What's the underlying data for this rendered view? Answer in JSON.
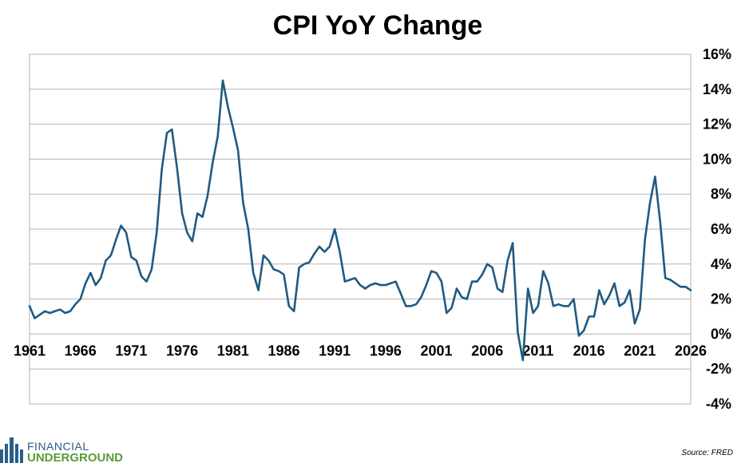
{
  "chart_data": {
    "type": "line",
    "title": "CPI YoY Change",
    "xlabel": "",
    "ylabel": "",
    "x_ticks": [
      "1961",
      "1966",
      "1971",
      "1976",
      "1981",
      "1986",
      "1991",
      "1996",
      "2001",
      "2006",
      "2011",
      "2016",
      "2021",
      "2026"
    ],
    "y_ticks": [
      "16%",
      "14%",
      "12%",
      "10%",
      "8%",
      "6%",
      "4%",
      "2%",
      "0%",
      "-2%",
      "-4%"
    ],
    "xlim": [
      1961,
      2026
    ],
    "ylim": [
      -4,
      16
    ],
    "grid": true,
    "legend": "none",
    "line_color": "#1f5a82",
    "series": [
      {
        "values": [
          [
            1961.0,
            1.6
          ],
          [
            1961.5,
            0.9
          ],
          [
            1962.0,
            1.1
          ],
          [
            1962.5,
            1.3
          ],
          [
            1963.0,
            1.2
          ],
          [
            1963.5,
            1.3
          ],
          [
            1964.0,
            1.4
          ],
          [
            1964.5,
            1.2
          ],
          [
            1965.0,
            1.3
          ],
          [
            1965.5,
            1.7
          ],
          [
            1966.0,
            2.0
          ],
          [
            1966.5,
            2.9
          ],
          [
            1967.0,
            3.5
          ],
          [
            1967.5,
            2.8
          ],
          [
            1968.0,
            3.2
          ],
          [
            1968.5,
            4.2
          ],
          [
            1969.0,
            4.5
          ],
          [
            1969.5,
            5.4
          ],
          [
            1970.0,
            6.2
          ],
          [
            1970.5,
            5.8
          ],
          [
            1971.0,
            4.4
          ],
          [
            1971.5,
            4.2
          ],
          [
            1972.0,
            3.3
          ],
          [
            1972.5,
            3.0
          ],
          [
            1973.0,
            3.7
          ],
          [
            1973.5,
            5.8
          ],
          [
            1974.0,
            9.4
          ],
          [
            1974.5,
            11.5
          ],
          [
            1975.0,
            11.7
          ],
          [
            1975.5,
            9.5
          ],
          [
            1976.0,
            6.9
          ],
          [
            1976.5,
            5.8
          ],
          [
            1977.0,
            5.3
          ],
          [
            1977.5,
            6.9
          ],
          [
            1978.0,
            6.7
          ],
          [
            1978.5,
            7.9
          ],
          [
            1979.0,
            9.8
          ],
          [
            1979.5,
            11.3
          ],
          [
            1980.0,
            14.5
          ],
          [
            1980.5,
            13.0
          ],
          [
            1981.0,
            11.8
          ],
          [
            1981.5,
            10.5
          ],
          [
            1982.0,
            7.5
          ],
          [
            1982.5,
            6.0
          ],
          [
            1983.0,
            3.5
          ],
          [
            1983.5,
            2.5
          ],
          [
            1984.0,
            4.5
          ],
          [
            1984.5,
            4.2
          ],
          [
            1985.0,
            3.7
          ],
          [
            1985.5,
            3.6
          ],
          [
            1986.0,
            3.4
          ],
          [
            1986.5,
            1.6
          ],
          [
            1987.0,
            1.3
          ],
          [
            1987.5,
            3.8
          ],
          [
            1988.0,
            4.0
          ],
          [
            1988.5,
            4.1
          ],
          [
            1989.0,
            4.6
          ],
          [
            1989.5,
            5.0
          ],
          [
            1990.0,
            4.7
          ],
          [
            1990.5,
            5.0
          ],
          [
            1991.0,
            6.0
          ],
          [
            1991.5,
            4.7
          ],
          [
            1992.0,
            3.0
          ],
          [
            1992.5,
            3.1
          ],
          [
            1993.0,
            3.2
          ],
          [
            1993.5,
            2.8
          ],
          [
            1994.0,
            2.6
          ],
          [
            1994.5,
            2.8
          ],
          [
            1995.0,
            2.9
          ],
          [
            1995.5,
            2.8
          ],
          [
            1996.0,
            2.8
          ],
          [
            1996.5,
            2.9
          ],
          [
            1997.0,
            3.0
          ],
          [
            1997.5,
            2.3
          ],
          [
            1998.0,
            1.6
          ],
          [
            1998.5,
            1.6
          ],
          [
            1999.0,
            1.7
          ],
          [
            1999.5,
            2.1
          ],
          [
            2000.0,
            2.8
          ],
          [
            2000.5,
            3.6
          ],
          [
            2001.0,
            3.5
          ],
          [
            2001.5,
            3.0
          ],
          [
            2002.0,
            1.2
          ],
          [
            2002.5,
            1.5
          ],
          [
            2003.0,
            2.6
          ],
          [
            2003.5,
            2.1
          ],
          [
            2004.0,
            2.0
          ],
          [
            2004.5,
            3.0
          ],
          [
            2005.0,
            3.0
          ],
          [
            2005.5,
            3.4
          ],
          [
            2006.0,
            4.0
          ],
          [
            2006.5,
            3.8
          ],
          [
            2007.0,
            2.6
          ],
          [
            2007.5,
            2.4
          ],
          [
            2008.0,
            4.2
          ],
          [
            2008.5,
            5.2
          ],
          [
            2009.0,
            0.1
          ],
          [
            2009.5,
            -1.5
          ],
          [
            2010.0,
            2.6
          ],
          [
            2010.5,
            1.2
          ],
          [
            2011.0,
            1.6
          ],
          [
            2011.5,
            3.6
          ],
          [
            2012.0,
            2.9
          ],
          [
            2012.5,
            1.6
          ],
          [
            2013.0,
            1.7
          ],
          [
            2013.5,
            1.6
          ],
          [
            2014.0,
            1.6
          ],
          [
            2014.5,
            2.0
          ],
          [
            2015.0,
            -0.1
          ],
          [
            2015.5,
            0.2
          ],
          [
            2016.0,
            1.0
          ],
          [
            2016.5,
            1.0
          ],
          [
            2017.0,
            2.5
          ],
          [
            2017.5,
            1.7
          ],
          [
            2018.0,
            2.2
          ],
          [
            2018.5,
            2.9
          ],
          [
            2019.0,
            1.6
          ],
          [
            2019.5,
            1.8
          ],
          [
            2020.0,
            2.5
          ],
          [
            2020.5,
            0.6
          ],
          [
            2021.0,
            1.4
          ],
          [
            2021.5,
            5.4
          ],
          [
            2022.0,
            7.5
          ],
          [
            2022.5,
            9.0
          ],
          [
            2023.0,
            6.4
          ],
          [
            2023.5,
            3.2
          ],
          [
            2024.0,
            3.1
          ],
          [
            2024.5,
            2.9
          ],
          [
            2025.0,
            2.7
          ],
          [
            2025.5,
            2.7
          ],
          [
            2026.0,
            2.5
          ]
        ]
      }
    ]
  },
  "footer": {
    "source": "Source: FRED",
    "logo_top": "FINANCIAL",
    "logo_bottom": "UNDERGROUND"
  },
  "colors": {
    "line": "#1f5a82",
    "grid": "#b3b3b3",
    "frame": "#b3b3b3",
    "logo_blue": "#2a5e8a",
    "logo_green": "#5b9b3a"
  }
}
